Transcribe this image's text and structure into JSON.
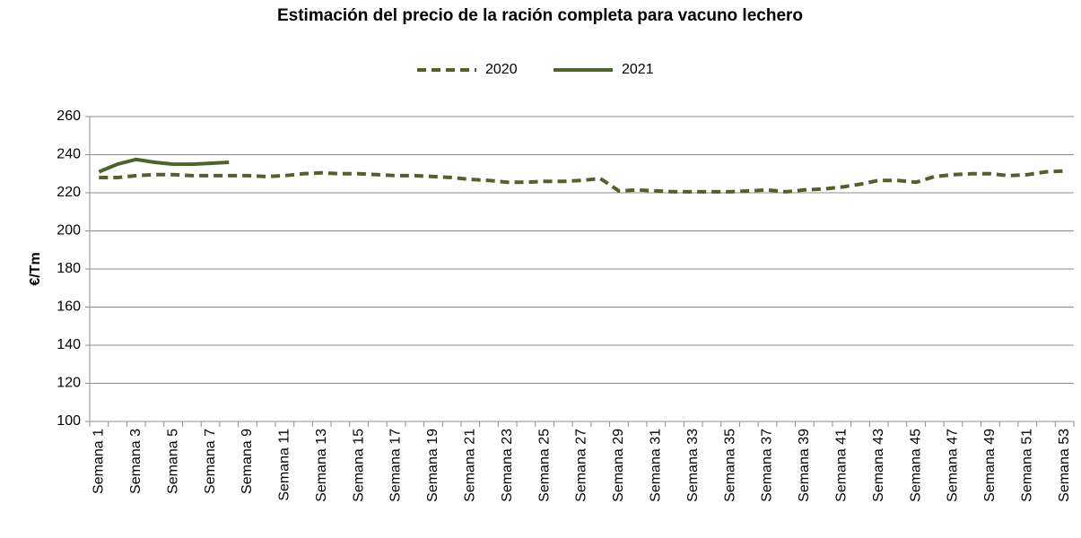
{
  "chart_data": {
    "type": "line",
    "title": "Estimación del precio de la ración completa para vacuno lechero",
    "y_axis_label": "€/Tm",
    "categories": [
      "Semana 1",
      null,
      "Semana 3",
      null,
      "Semana 5",
      null,
      "Semana 7",
      null,
      "Semana 9",
      null,
      "Semana 11",
      null,
      "Semana 13",
      null,
      "Semana 15",
      null,
      "Semana 17",
      null,
      "Semana 19",
      null,
      "Semana 21",
      null,
      "Semana 23",
      null,
      "Semana 25",
      null,
      "Semana 27",
      null,
      "Semana 29",
      null,
      "Semana 31",
      null,
      "Semana 33",
      null,
      "Semana 35",
      null,
      "Semana 37",
      null,
      "Semana 39",
      null,
      "Semana 41",
      null,
      "Semana 43",
      null,
      "Semana 45",
      null,
      "Semana 47",
      null,
      "Semana 49",
      null,
      "Semana 51",
      null,
      "Semana 53"
    ],
    "series": [
      {
        "name": "2020",
        "color": "#4f6228",
        "dashed": true,
        "values": [
          228,
          228,
          229,
          229.5,
          229.5,
          229,
          229,
          229,
          229,
          228.5,
          229,
          230,
          230.5,
          230,
          230,
          229.5,
          229,
          229,
          228.5,
          228,
          227,
          226.5,
          225.5,
          225.5,
          226,
          226,
          226.5,
          227.5,
          221,
          221.5,
          221,
          220.5,
          220.5,
          220.5,
          220.5,
          221,
          221.5,
          220.5,
          221.5,
          222,
          223,
          224.5,
          226.5,
          226.5,
          225.5,
          228.5,
          229.5,
          230,
          230,
          229,
          229.5,
          231,
          231.5
        ]
      },
      {
        "name": "2021",
        "color": "#4f6228",
        "dashed": false,
        "values": [
          231,
          235,
          237.5,
          236,
          235,
          235,
          235.5,
          236,
          null,
          null,
          null,
          null,
          null,
          null,
          null,
          null,
          null,
          null,
          null,
          null,
          null,
          null,
          null,
          null,
          null,
          null,
          null,
          null,
          null,
          null,
          null,
          null,
          null,
          null,
          null,
          null,
          null,
          null,
          null,
          null,
          null,
          null,
          null,
          null,
          null,
          null,
          null,
          null,
          null,
          null,
          null,
          null,
          null
        ]
      }
    ],
    "ylim": [
      100,
      260
    ],
    "yticks": [
      100,
      120,
      140,
      160,
      180,
      200,
      220,
      240,
      260
    ],
    "grid": true,
    "legend": "top"
  }
}
